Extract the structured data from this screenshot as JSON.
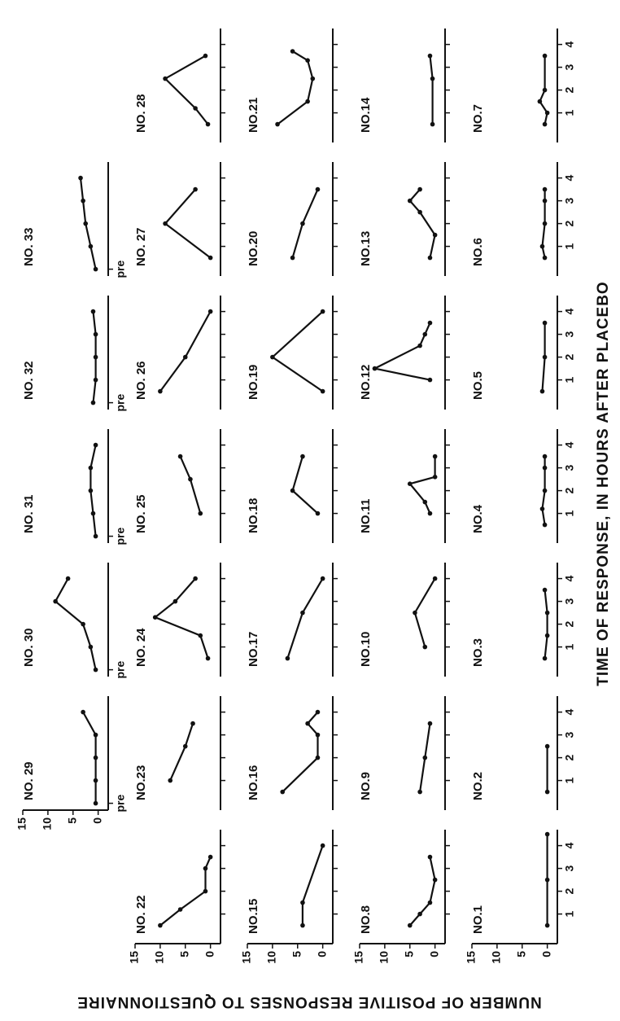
{
  "figure": {
    "xlabel": "TIME OF RESPONSE, IN HOURS AFTER PLACEBO",
    "ylabel": "NUMBER OF POSITIVE RESPONSES TO QUESTIONNAIRE"
  },
  "chart_data": [
    {
      "type": "line",
      "title": "NO.1",
      "x": [
        0.5,
        2.5,
        4.5
      ],
      "values": [
        0,
        0,
        0
      ],
      "xlim": [
        -0.3,
        4.7
      ],
      "ylim": [
        -2,
        15
      ],
      "xticks": [
        1,
        2,
        3,
        4
      ],
      "yticks": [
        0,
        5,
        10,
        15
      ]
    },
    {
      "type": "line",
      "title": "NO.2",
      "x": [
        0.5,
        2.5
      ],
      "values": [
        0,
        0
      ],
      "xlim": [
        -0.3,
        4.7
      ],
      "ylim": [
        -2,
        15
      ],
      "xticks": [
        1,
        2,
        3,
        4
      ]
    },
    {
      "type": "line",
      "title": "NO.3",
      "x": [
        0.5,
        1.5,
        2.5,
        3.5
      ],
      "values": [
        0.5,
        0,
        0,
        0.5
      ],
      "xlim": [
        -0.3,
        4.7
      ],
      "ylim": [
        -2,
        15
      ],
      "xticks": [
        1,
        2,
        3,
        4
      ]
    },
    {
      "type": "line",
      "title": "NO.4",
      "x": [
        0.5,
        1.2,
        2,
        3,
        3.5
      ],
      "values": [
        0.5,
        1,
        0.5,
        0.5,
        0.5
      ],
      "xlim": [
        -0.3,
        4.7
      ],
      "ylim": [
        -2,
        15
      ],
      "xticks": [
        1,
        2,
        3,
        4
      ]
    },
    {
      "type": "line",
      "title": "NO.5",
      "x": [
        0.5,
        2,
        3.5
      ],
      "values": [
        1,
        0.5,
        0.5
      ],
      "xlim": [
        -0.3,
        4.7
      ],
      "ylim": [
        -2,
        15
      ],
      "xticks": [
        1,
        2,
        3,
        4
      ]
    },
    {
      "type": "line",
      "title": "NO.6",
      "x": [
        0.5,
        1,
        2,
        3,
        3.5
      ],
      "values": [
        0.5,
        1,
        0.5,
        0.5,
        0.5
      ],
      "xlim": [
        -0.3,
        4.7
      ],
      "ylim": [
        -2,
        15
      ],
      "xticks": [
        1,
        2,
        3,
        4
      ]
    },
    {
      "type": "line",
      "title": "NO.7",
      "x": [
        0.5,
        1,
        1.5,
        2,
        3.5
      ],
      "values": [
        0.5,
        0,
        1.5,
        0.5,
        0.5
      ],
      "xlim": [
        -0.3,
        4.7
      ],
      "ylim": [
        -2,
        15
      ],
      "xticks": [
        1,
        2,
        3,
        4
      ]
    },
    {
      "type": "line",
      "title": "NO.8",
      "x": [
        0.5,
        1,
        1.5,
        2.5,
        3.5
      ],
      "values": [
        5,
        3,
        1,
        0,
        1
      ],
      "xlim": [
        -0.3,
        4.7
      ],
      "ylim": [
        -2,
        15
      ],
      "yticks": [
        0,
        5,
        10,
        15
      ]
    },
    {
      "type": "line",
      "title": "NO.9",
      "x": [
        0.5,
        2,
        3.5
      ],
      "values": [
        3,
        2,
        1
      ],
      "xlim": [
        -0.3,
        4.7
      ],
      "ylim": [
        -2,
        15
      ]
    },
    {
      "type": "line",
      "title": "NO.10",
      "x": [
        1,
        2.5,
        4
      ],
      "values": [
        2,
        4,
        0
      ],
      "xlim": [
        -0.3,
        4.7
      ],
      "ylim": [
        -2,
        15
      ]
    },
    {
      "type": "line",
      "title": "NO.11",
      "x": [
        1,
        1.5,
        2.3,
        2.6,
        3.5
      ],
      "values": [
        1,
        2,
        5,
        0,
        0
      ],
      "xlim": [
        -0.3,
        4.7
      ],
      "ylim": [
        -2,
        15
      ]
    },
    {
      "type": "line",
      "title": "NO.12",
      "x": [
        1,
        1.5,
        2.5,
        3,
        3.5
      ],
      "values": [
        1,
        12,
        3,
        2,
        1
      ],
      "xlim": [
        -0.3,
        4.7
      ],
      "ylim": [
        -2,
        15
      ]
    },
    {
      "type": "line",
      "title": "NO.13",
      "x": [
        0.5,
        1.5,
        2.5,
        3,
        3.5
      ],
      "values": [
        1,
        0,
        3,
        5,
        3
      ],
      "xlim": [
        -0.3,
        4.7
      ],
      "ylim": [
        -2,
        15
      ]
    },
    {
      "type": "line",
      "title": "NO.14",
      "x": [
        0.5,
        2.5,
        3.5
      ],
      "values": [
        0.5,
        0.5,
        1
      ],
      "xlim": [
        -0.3,
        4.7
      ],
      "ylim": [
        -2,
        15
      ]
    },
    {
      "type": "line",
      "title": "NO.15",
      "x": [
        0.5,
        1.5,
        4
      ],
      "values": [
        4,
        4,
        0
      ],
      "xlim": [
        -0.3,
        4.7
      ],
      "ylim": [
        -2,
        15
      ],
      "yticks": [
        0,
        5,
        10,
        15
      ]
    },
    {
      "type": "line",
      "title": "NO.16",
      "x": [
        0.5,
        2,
        3,
        3.5,
        4
      ],
      "values": [
        8,
        1,
        1,
        3,
        1
      ],
      "xlim": [
        -0.3,
        4.7
      ],
      "ylim": [
        -2,
        15
      ]
    },
    {
      "type": "line",
      "title": "NO.17",
      "x": [
        0.5,
        2.5,
        4
      ],
      "values": [
        7,
        4,
        0
      ],
      "xlim": [
        -0.3,
        4.7
      ],
      "ylim": [
        -2,
        15
      ]
    },
    {
      "type": "line",
      "title": "NO.18",
      "x": [
        1,
        2,
        3.5
      ],
      "values": [
        1,
        6,
        4
      ],
      "xlim": [
        -0.3,
        4.7
      ],
      "ylim": [
        -2,
        15
      ]
    },
    {
      "type": "line",
      "title": "NO.19",
      "x": [
        0.5,
        2,
        4
      ],
      "values": [
        0,
        10,
        0
      ],
      "xlim": [
        -0.3,
        4.7
      ],
      "ylim": [
        -2,
        15
      ]
    },
    {
      "type": "line",
      "title": "NO.20",
      "x": [
        0.5,
        2,
        3.5
      ],
      "values": [
        6,
        4,
        1
      ],
      "xlim": [
        -0.3,
        4.7
      ],
      "ylim": [
        -2,
        15
      ]
    },
    {
      "type": "line",
      "title": "NO.21",
      "x": [
        0.5,
        1.5,
        2.5,
        3.3,
        3.7
      ],
      "values": [
        9,
        3,
        2,
        3,
        6
      ],
      "xlim": [
        -0.3,
        4.7
      ],
      "ylim": [
        -2,
        15
      ]
    },
    {
      "type": "line",
      "title": "NO. 22",
      "x": [
        0.5,
        1.2,
        2,
        3,
        3.5
      ],
      "values": [
        10,
        6,
        1,
        1,
        0
      ],
      "xlim": [
        -0.3,
        4.7
      ],
      "ylim": [
        -2,
        15
      ],
      "yticks": [
        0,
        5,
        10,
        15
      ]
    },
    {
      "type": "line",
      "title": "NO.23",
      "x": [
        1,
        2.5,
        3.5
      ],
      "values": [
        8,
        5,
        3.5
      ],
      "xlim": [
        -0.3,
        4.7
      ],
      "ylim": [
        -2,
        15
      ]
    },
    {
      "type": "line",
      "title": "NO. 24",
      "x": [
        0.5,
        1.5,
        2.3,
        3,
        4
      ],
      "values": [
        0.5,
        2,
        11,
        7,
        3
      ],
      "xlim": [
        -0.3,
        4.7
      ],
      "ylim": [
        -2,
        15
      ]
    },
    {
      "type": "line",
      "title": "NO. 25",
      "x": [
        1,
        2.5,
        3.5
      ],
      "values": [
        2,
        4,
        6
      ],
      "xlim": [
        -0.3,
        4.7
      ],
      "ylim": [
        -2,
        15
      ]
    },
    {
      "type": "line",
      "title": "NO. 26",
      "x": [
        0.5,
        2,
        4
      ],
      "values": [
        10,
        5,
        0
      ],
      "xlim": [
        -0.3,
        4.7
      ],
      "ylim": [
        -2,
        15
      ]
    },
    {
      "type": "line",
      "title": "NO. 27",
      "x": [
        0.5,
        2,
        3.5
      ],
      "values": [
        0,
        9,
        3
      ],
      "xlim": [
        -0.3,
        4.7
      ],
      "ylim": [
        -2,
        15
      ]
    },
    {
      "type": "line",
      "title": "NO. 28",
      "x": [
        0.5,
        1.2,
        2.5,
        3.5
      ],
      "values": [
        0.5,
        3,
        9,
        1
      ],
      "xlim": [
        -0.3,
        4.7
      ],
      "ylim": [
        -2,
        15
      ]
    },
    {
      "type": "line",
      "title": "NO. 29",
      "x": [
        0,
        1,
        2,
        3,
        4
      ],
      "values": [
        0.5,
        0.5,
        0.5,
        0.5,
        3
      ],
      "xlim": [
        -0.3,
        4.7
      ],
      "ylim": [
        -2,
        15
      ],
      "xticks": [
        {
          "value": 0,
          "label": "pre"
        }
      ],
      "yticks": [
        0,
        5,
        10,
        15
      ]
    },
    {
      "type": "line",
      "title": "NO. 30",
      "x": [
        0,
        1,
        2,
        3,
        4
      ],
      "values": [
        0.5,
        1.5,
        3,
        8.5,
        6
      ],
      "xlim": [
        -0.3,
        4.7
      ],
      "ylim": [
        -2,
        15
      ],
      "xticks": [
        {
          "value": 0,
          "label": "pre"
        }
      ]
    },
    {
      "type": "line",
      "title": "NO. 31",
      "x": [
        0,
        1,
        2,
        3,
        4
      ],
      "values": [
        0.5,
        1,
        1.5,
        1.5,
        0.5
      ],
      "xlim": [
        -0.3,
        4.7
      ],
      "ylim": [
        -2,
        15
      ],
      "xticks": [
        {
          "value": 0,
          "label": "pre"
        }
      ]
    },
    {
      "type": "line",
      "title": "NO. 32",
      "x": [
        0,
        1,
        2,
        3,
        4
      ],
      "values": [
        1,
        0.5,
        0.5,
        0.5,
        1
      ],
      "xlim": [
        -0.3,
        4.7
      ],
      "ylim": [
        -2,
        15
      ],
      "xticks": [
        {
          "value": 0,
          "label": "pre"
        }
      ]
    },
    {
      "type": "line",
      "title": "NO. 33",
      "x": [
        0,
        1,
        2,
        3,
        4
      ],
      "values": [
        0.5,
        1.5,
        2.5,
        3,
        3.5
      ],
      "xlim": [
        -0.3,
        4.7
      ],
      "ylim": [
        -2,
        15
      ],
      "xticks": [
        {
          "value": 0,
          "label": "pre"
        }
      ]
    }
  ]
}
